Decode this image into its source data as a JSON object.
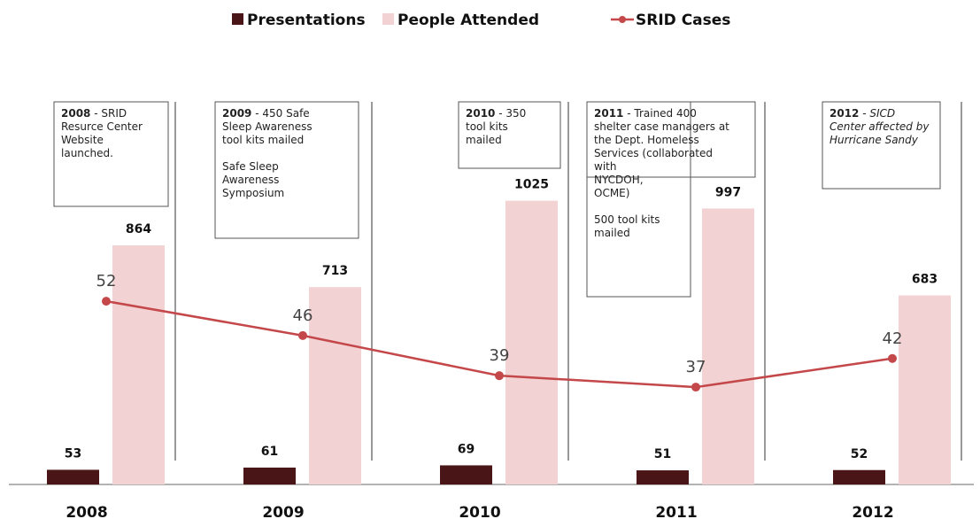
{
  "chart_data": {
    "type": "bar",
    "categories": [
      "2008",
      "2009",
      "2010",
      "2011",
      "2012"
    ],
    "series": [
      {
        "name": "Presentations",
        "color": "#4a1517",
        "values": [
          53,
          61,
          69,
          51,
          52
        ]
      },
      {
        "name": "People Attended",
        "color": "#f2d2d2",
        "values": [
          864,
          713,
          1025,
          997,
          683
        ]
      },
      {
        "name": "SRID Cases",
        "type": "line",
        "axis": "y2",
        "color": "#c4474a",
        "values": [
          52,
          46,
          39,
          37,
          42
        ]
      }
    ],
    "ylim": [
      0,
      1200
    ],
    "y2lim": [
      20,
      78
    ],
    "legend": "top",
    "annotations": [
      {
        "label": "2008",
        "paragraphs": [
          [
            "- SRID",
            "Resurce Center",
            "Website",
            "launched."
          ]
        ]
      },
      {
        "label": "2009",
        "paragraphs": [
          [
            "- 450 Safe",
            "Sleep Awareness",
            "tool kits mailed"
          ],
          [
            "Safe Sleep",
            "Awareness",
            "Symposium"
          ]
        ]
      },
      {
        "label": "2010",
        "paragraphs": [
          [
            "- 350",
            "tool kits",
            "mailed"
          ]
        ]
      },
      {
        "label": "2011",
        "paragraphs": [
          [
            "- Trained 400",
            "shelter case managers at",
            "the  Dept. Homeless",
            "Services (collaborated",
            "with",
            "NYCDOH,",
            "OCME)"
          ],
          [
            "500 tool kits",
            "mailed"
          ]
        ]
      },
      {
        "label": "2012",
        "italic": true,
        "paragraphs": [
          [
            "- SICD",
            "Center affected by",
            "Hurricane Sandy"
          ]
        ]
      }
    ]
  }
}
